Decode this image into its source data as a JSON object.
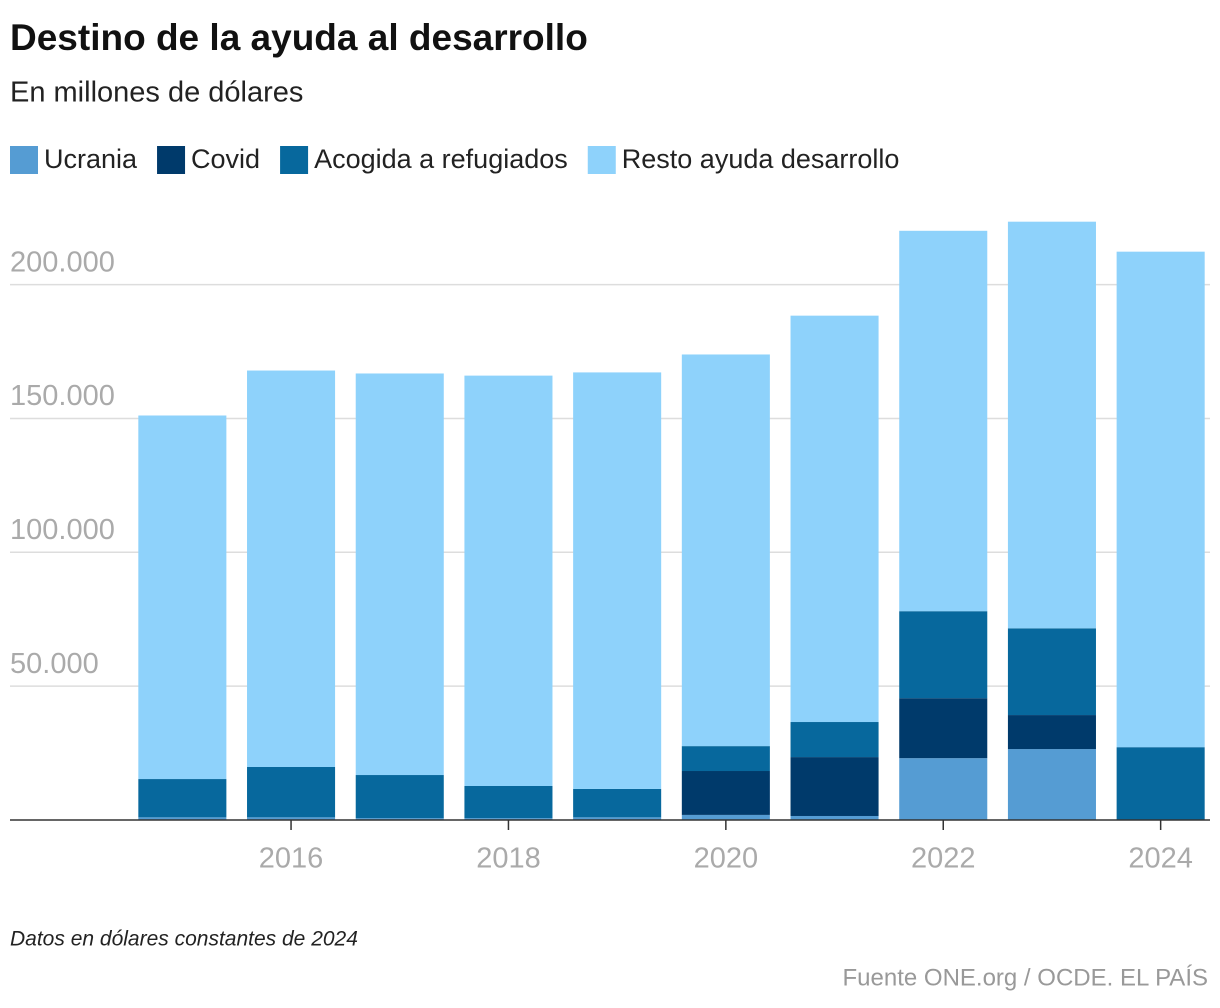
{
  "chart_data": {
    "type": "stacked_bar",
    "title": "Destino de la ayuda al desarrollo",
    "subtitle": "En millones de dólares",
    "x": [
      2015,
      2016,
      2017,
      2018,
      2019,
      2020,
      2021,
      2022,
      2023,
      2024
    ],
    "xlim": [
      2014.5,
      2024.5
    ],
    "xticks": [
      2016,
      2018,
      2020,
      2022,
      2024
    ],
    "ylim": [
      0,
      226000
    ],
    "yticks": [
      {
        "value": 50000,
        "label": "50.000"
      },
      {
        "value": 100000,
        "label": "100.000"
      },
      {
        "value": 150000,
        "label": "150.000"
      },
      {
        "value": 200000,
        "label": "200.000"
      }
    ],
    "grid": true,
    "series": [
      {
        "name": "Ucrania",
        "color": "#559cd3",
        "values": [
          1000,
          1000,
          700,
          700,
          1000,
          1900,
          1500,
          23100,
          26500,
          0
        ]
      },
      {
        "name": "Covid",
        "color": "#003a6b",
        "values": [
          0,
          0,
          0,
          0,
          0,
          16400,
          22000,
          22400,
          12700,
          0
        ]
      },
      {
        "name": "Acogida a refugiados",
        "color": "#07689d",
        "values": [
          14300,
          18800,
          16100,
          12000,
          10600,
          9300,
          13100,
          32500,
          32400,
          27200
        ]
      },
      {
        "name": "Resto ayuda desarrollo",
        "color": "#8ed2fb",
        "values": [
          135800,
          148100,
          150000,
          153300,
          155600,
          146300,
          151800,
          142100,
          151900,
          185100
        ]
      }
    ],
    "note": "Datos en dólares constantes de 2024",
    "source": "Fuente ONE.org / OCDE. EL PAÍS"
  }
}
